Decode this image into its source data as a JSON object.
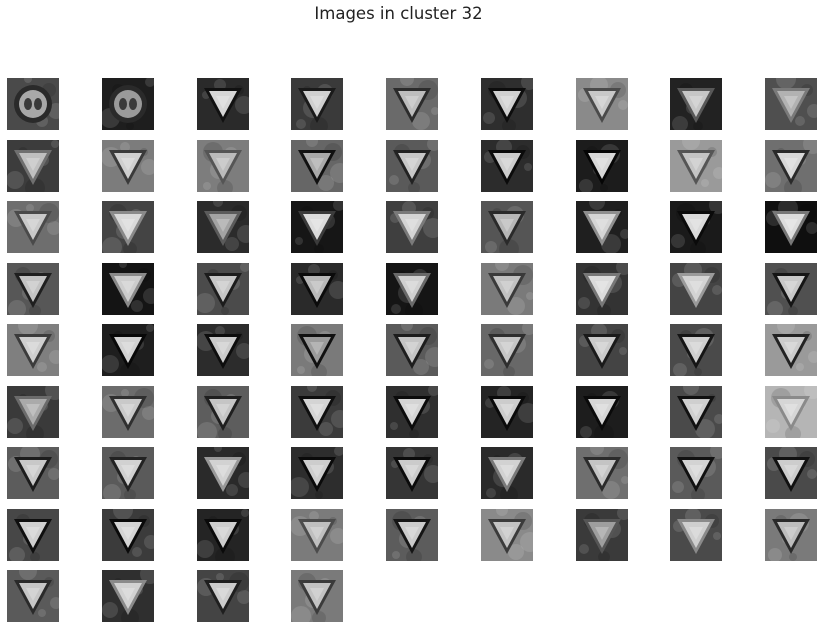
{
  "figure": {
    "title": "Images in cluster 32"
  },
  "grid": {
    "columns": 9,
    "image_count": 76,
    "images": [
      {
        "kind": "round-sign",
        "bg": "#4a4a4a",
        "tone": "#a8a8a8"
      },
      {
        "kind": "round-sign",
        "bg": "#1e1e1e",
        "tone": "#9a9a9a"
      },
      {
        "kind": "yield",
        "bg": "#2a2a2a",
        "tone": "#d6d6d6",
        "border": "#111111"
      },
      {
        "kind": "yield",
        "bg": "#3a3a3a",
        "tone": "#cfcfcf",
        "border": "#1a1a1a"
      },
      {
        "kind": "yield",
        "bg": "#6a6a6a",
        "tone": "#bdbdbd",
        "border": "#2b2b2b"
      },
      {
        "kind": "yield",
        "bg": "#2e2e2e",
        "tone": "#d0d0d0",
        "border": "#0d0d0d"
      },
      {
        "kind": "yield",
        "bg": "#8a8a8a",
        "tone": "#c8c8c8",
        "border": "#4a4a4a"
      },
      {
        "kind": "yield",
        "bg": "#222222",
        "tone": "#c6c6c6",
        "border": "#585858"
      },
      {
        "kind": "yield",
        "bg": "#4f4f4f",
        "tone": "#b2b2b2",
        "border": "#7a7a7a"
      },
      {
        "kind": "yield",
        "bg": "#3c3c3c",
        "tone": "#bfbfbf",
        "border": "#6f6f6f"
      },
      {
        "kind": "yield",
        "bg": "#7c7c7c",
        "tone": "#cfcfcf",
        "border": "#3a3a3a"
      },
      {
        "kind": "yield",
        "bg": "#7d7d7d",
        "tone": "#bbbbbb",
        "border": "#555555"
      },
      {
        "kind": "yield",
        "bg": "#666666",
        "tone": "#a9a9a9",
        "border": "#111111"
      },
      {
        "kind": "yield",
        "bg": "#5a5a5a",
        "tone": "#c7c7c7",
        "border": "#222222"
      },
      {
        "kind": "yield",
        "bg": "#2c2c2c",
        "tone": "#cccccc",
        "border": "#0b0b0b"
      },
      {
        "kind": "yield",
        "bg": "#1c1c1c",
        "tone": "#d6d6d6",
        "border": "#050505"
      },
      {
        "kind": "yield",
        "bg": "#9a9a9a",
        "tone": "#c4c4c4",
        "border": "#555555"
      },
      {
        "kind": "yield",
        "bg": "#6f6f6f",
        "tone": "#d8d8d8",
        "border": "#2a2a2a"
      },
      {
        "kind": "yield",
        "bg": "#6e6e6e",
        "tone": "#c9c9c9",
        "border": "#4a4a4a"
      },
      {
        "kind": "yield",
        "bg": "#444444",
        "tone": "#d9d9d9",
        "border": "#8a8a8a"
      },
      {
        "kind": "yield",
        "bg": "#2b2b2b",
        "tone": "#a3a3a3",
        "border": "#5b5b5b"
      },
      {
        "kind": "yield",
        "bg": "#161616",
        "tone": "#dcdcdc",
        "border": "#3b3b3b"
      },
      {
        "kind": "yield",
        "bg": "#3f3f3f",
        "tone": "#d4d4d4",
        "border": "#7a7a7a"
      },
      {
        "kind": "yield",
        "bg": "#555555",
        "tone": "#b7b7b7",
        "border": "#2a2a2a"
      },
      {
        "kind": "yield",
        "bg": "#1f1f1f",
        "tone": "#d5d5d5",
        "border": "#8f8f8f"
      },
      {
        "kind": "yield",
        "bg": "#1a1a1a",
        "tone": "#dadada",
        "border": "#0a0a0a"
      },
      {
        "kind": "yield",
        "bg": "#0f0f0f",
        "tone": "#dcdcdc",
        "border": "#777777"
      },
      {
        "kind": "yield",
        "bg": "#575757",
        "tone": "#c3c3c3",
        "border": "#1f1f1f"
      },
      {
        "kind": "yield",
        "bg": "#141414",
        "tone": "#cdcdcd",
        "border": "#8a8a8a"
      },
      {
        "kind": "yield",
        "bg": "#4b4b4b",
        "tone": "#c6c6c6",
        "border": "#1c1c1c"
      },
      {
        "kind": "yield",
        "bg": "#2a2a2a",
        "tone": "#b8b8b8",
        "border": "#0b0b0b"
      },
      {
        "kind": "yield",
        "bg": "#151515",
        "tone": "#d0d0d0",
        "border": "#6a6a6a"
      },
      {
        "kind": "yield",
        "bg": "#7a7a7a",
        "tone": "#c1c1c1",
        "border": "#3a3a3a"
      },
      {
        "kind": "yield",
        "bg": "#333333",
        "tone": "#dbdbdb",
        "border": "#777777"
      },
      {
        "kind": "yield",
        "bg": "#444444",
        "tone": "#d3d3d3",
        "border": "#9a9a9a"
      },
      {
        "kind": "yield",
        "bg": "#505050",
        "tone": "#c8c8c8",
        "border": "#151515"
      },
      {
        "kind": "yield",
        "bg": "#7f7f7f",
        "tone": "#cfcfcf",
        "border": "#3b3b3b"
      },
      {
        "kind": "yield",
        "bg": "#1e1e1e",
        "tone": "#d2d2d2",
        "border": "#080808"
      },
      {
        "kind": "yield",
        "bg": "#2c2c2c",
        "tone": "#cbcbcb",
        "border": "#0d0d0d"
      },
      {
        "kind": "yield",
        "bg": "#7a7a7a",
        "tone": "#9b9b9b",
        "border": "#111111"
      },
      {
        "kind": "yield",
        "bg": "#5a5a5a",
        "tone": "#c4c4c4",
        "border": "#1d1d1d"
      },
      {
        "kind": "yield",
        "bg": "#686868",
        "tone": "#c6c6c6",
        "border": "#2e2e2e"
      },
      {
        "kind": "yield",
        "bg": "#444444",
        "tone": "#cacaca",
        "border": "#1a1a1a"
      },
      {
        "kind": "yield",
        "bg": "#4a4a4a",
        "tone": "#cfcfcf",
        "border": "#151515"
      },
      {
        "kind": "yield",
        "bg": "#9a9a9a",
        "tone": "#cccccc",
        "border": "#222222"
      },
      {
        "kind": "yield",
        "bg": "#3a3a3a",
        "tone": "#aaaaaa",
        "border": "#6b6b6b"
      },
      {
        "kind": "yield",
        "bg": "#6c6c6c",
        "tone": "#c9c9c9",
        "border": "#2f2f2f"
      },
      {
        "kind": "yield",
        "bg": "#5d5d5d",
        "tone": "#c5c5c5",
        "border": "#1f1f1f"
      },
      {
        "kind": "yield",
        "bg": "#3b3b3b",
        "tone": "#d4d4d4",
        "border": "#0f0f0f"
      },
      {
        "kind": "yield",
        "bg": "#2f2f2f",
        "tone": "#d4d4d4",
        "border": "#0b0b0b"
      },
      {
        "kind": "yield",
        "bg": "#242424",
        "tone": "#cccccc",
        "border": "#0a0a0a"
      },
      {
        "kind": "yield",
        "bg": "#1d1d1d",
        "tone": "#d6d6d6",
        "border": "#0a0a0a"
      },
      {
        "kind": "yield",
        "bg": "#4a4a4a",
        "tone": "#cfcfcf",
        "border": "#111111"
      },
      {
        "kind": "yield",
        "bg": "#b5b5b5",
        "tone": "#d6d6d6",
        "border": "#8a8a8a"
      },
      {
        "kind": "yield",
        "bg": "#5c5c5c",
        "tone": "#c8c8c8",
        "border": "#1c1c1c"
      },
      {
        "kind": "yield",
        "bg": "#5a5a5a",
        "tone": "#d1d1d1",
        "border": "#222222"
      },
      {
        "kind": "yield",
        "bg": "#2a2a2a",
        "tone": "#d2d2d2",
        "border": "#999999"
      },
      {
        "kind": "yield",
        "bg": "#2d2d2d",
        "tone": "#cdcdcd",
        "border": "#0a0a0a"
      },
      {
        "kind": "yield",
        "bg": "#353535",
        "tone": "#cbcbcb",
        "border": "#0b0b0b"
      },
      {
        "kind": "yield",
        "bg": "#2a2a2a",
        "tone": "#d2d2d2",
        "border": "#7a7a7a"
      },
      {
        "kind": "yield",
        "bg": "#6f6f6f",
        "tone": "#c4c4c4",
        "border": "#2b2b2b"
      },
      {
        "kind": "yield",
        "bg": "#5a5a5a",
        "tone": "#d3d3d3",
        "border": "#111111"
      },
      {
        "kind": "yield",
        "bg": "#4a4a4a",
        "tone": "#cdcdcd",
        "border": "#111111"
      },
      {
        "kind": "yield",
        "bg": "#474747",
        "tone": "#cfcfcf",
        "border": "#0f0f0f"
      },
      {
        "kind": "yield",
        "bg": "#3b3b3b",
        "tone": "#d4d4d4",
        "border": "#0a0a0a"
      },
      {
        "kind": "yield",
        "bg": "#242424",
        "tone": "#cdcdcd",
        "border": "#0a0a0a"
      },
      {
        "kind": "yield",
        "bg": "#7b7b7b",
        "tone": "#bfbfbf",
        "border": "#4b4b4b"
      },
      {
        "kind": "yield",
        "bg": "#5c5c5c",
        "tone": "#cbcbcb",
        "border": "#151515"
      },
      {
        "kind": "yield",
        "bg": "#8a8a8a",
        "tone": "#c3c3c3",
        "border": "#3b3b3b"
      },
      {
        "kind": "yield",
        "bg": "#3a3a3a",
        "tone": "#9e9e9e",
        "border": "#555555"
      },
      {
        "kind": "yield",
        "bg": "#4a4a4a",
        "tone": "#cfcfcf",
        "border": "#8a8a8a"
      },
      {
        "kind": "yield",
        "bg": "#7a7a7a",
        "tone": "#bdbdbd",
        "border": "#2a2a2a"
      },
      {
        "kind": "yield",
        "bg": "#5a5a5a",
        "tone": "#c6c6c6",
        "border": "#2a2a2a"
      },
      {
        "kind": "yield",
        "bg": "#2f2f2f",
        "tone": "#d1d1d1",
        "border": "#8a8a8a"
      },
      {
        "kind": "yield",
        "bg": "#444444",
        "tone": "#cccccc",
        "border": "#1f1f1f"
      },
      {
        "kind": "yield",
        "bg": "#7a7a7a",
        "tone": "#c2c2c2",
        "border": "#3a3a3a"
      }
    ]
  }
}
